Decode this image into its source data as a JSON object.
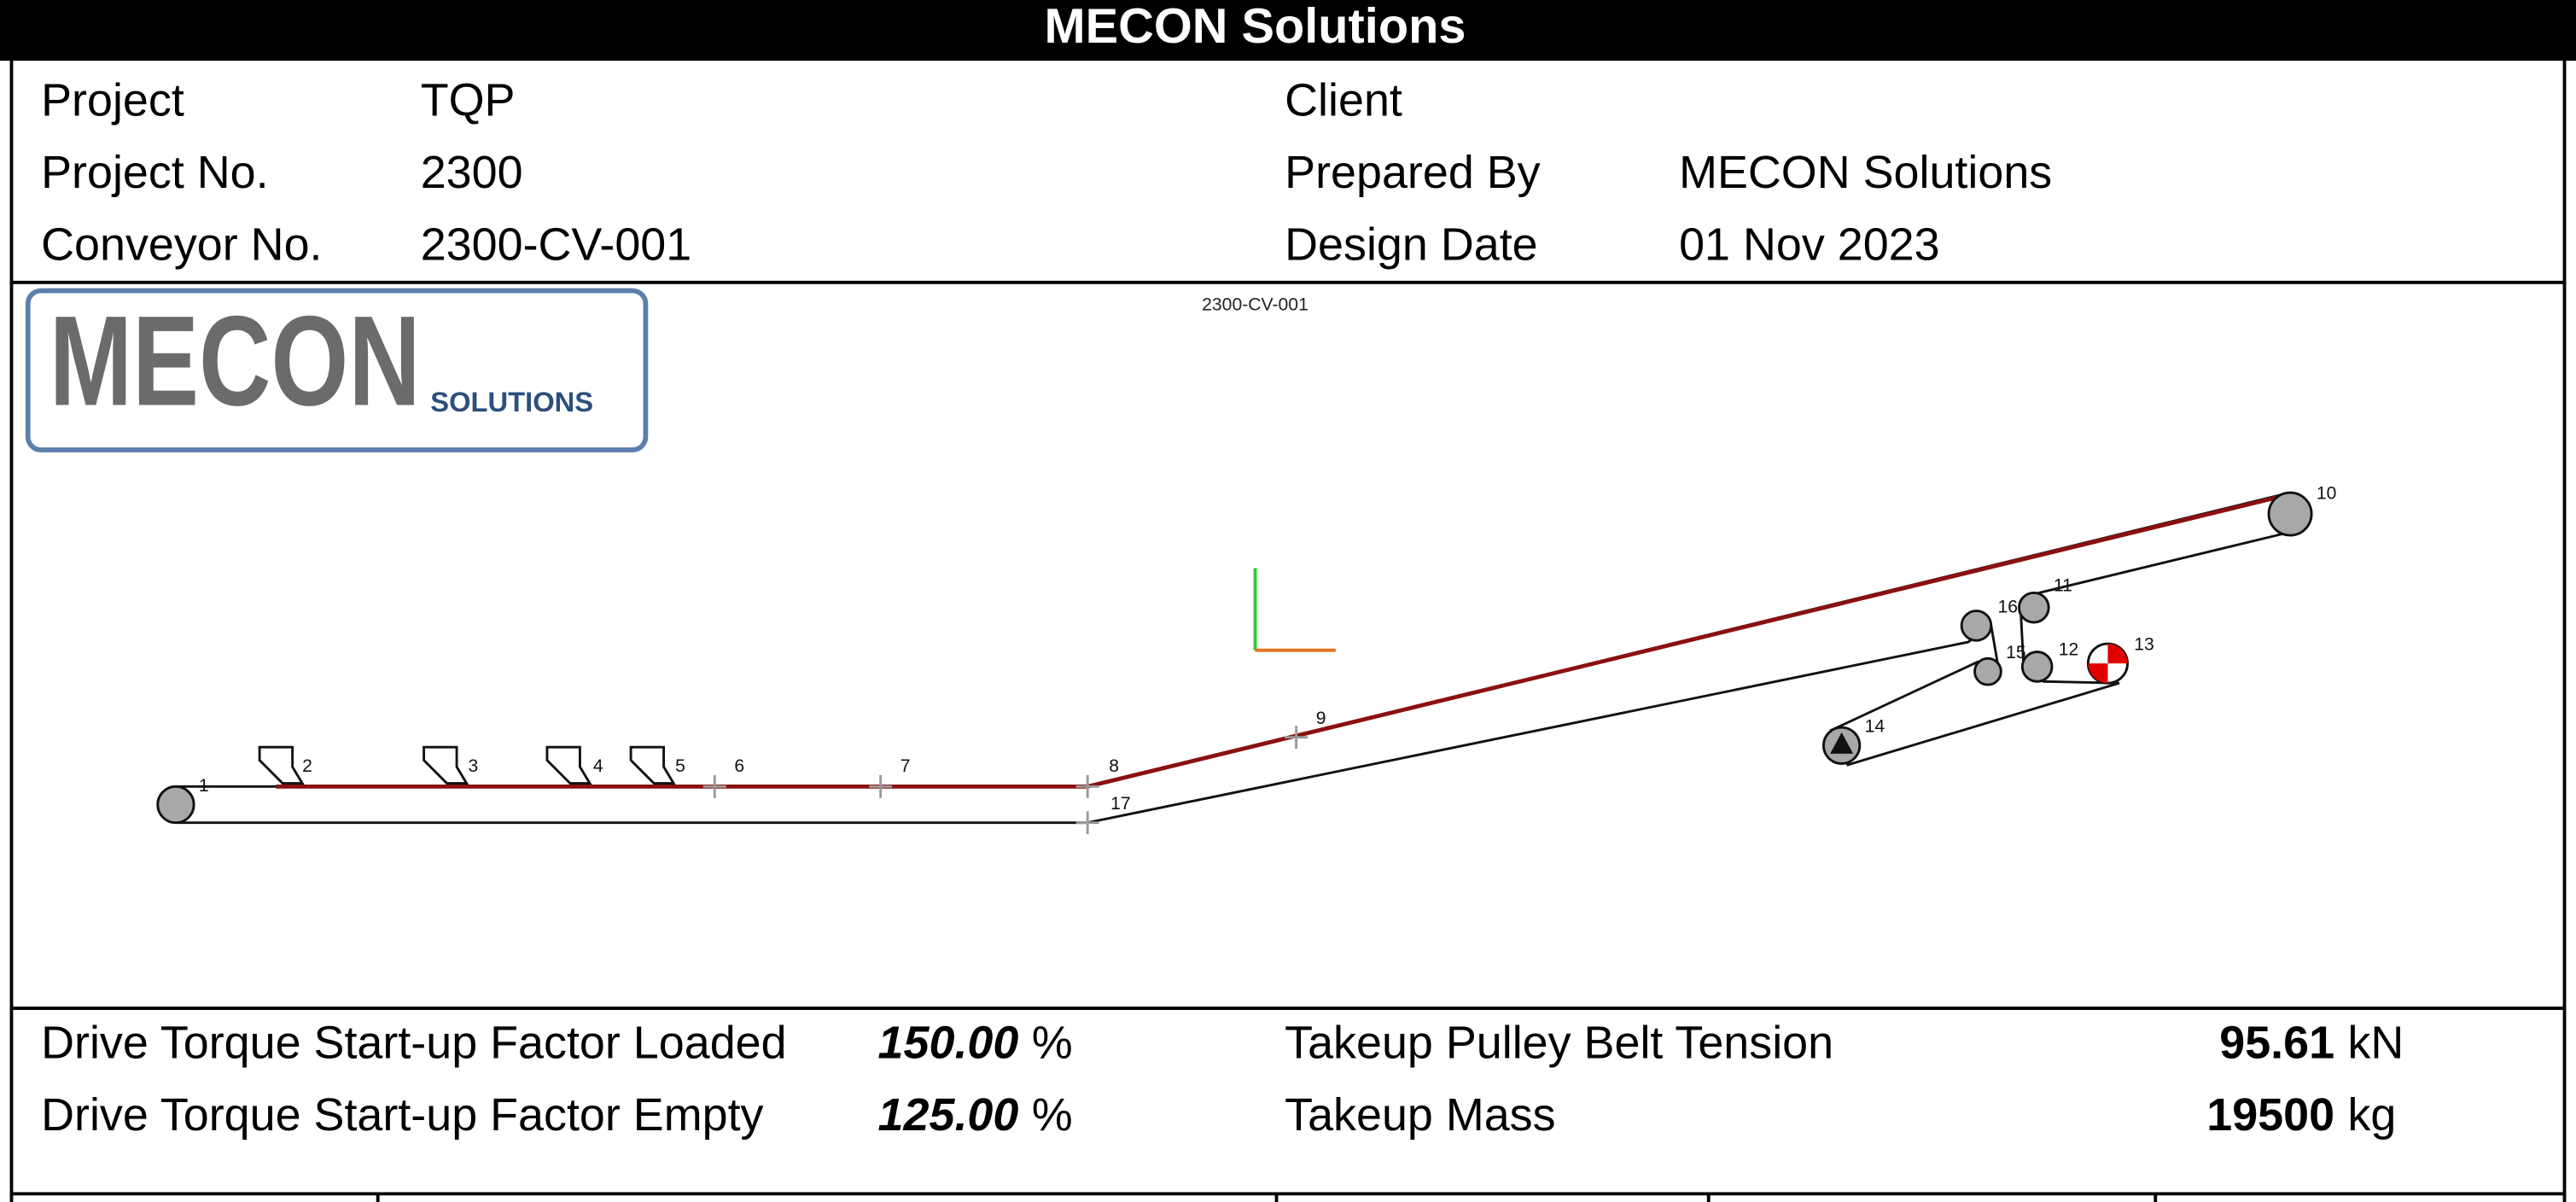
{
  "header": {
    "title": "MECON Solutions"
  },
  "info": [
    {
      "label": "Project",
      "value": "TQP"
    },
    {
      "label": "Project No.",
      "value": "2300"
    },
    {
      "label": "Conveyor No.",
      "value": "2300-CV-001"
    },
    {
      "label": "Client"
    },
    {
      "label": "Prepared By",
      "value": "MECON Solutions"
    },
    {
      "label": "Design Date",
      "value": "01 Nov 2023"
    }
  ],
  "logo": {
    "name": "MECON",
    "tagline": "SOLUTIONS"
  },
  "diagram": {
    "caption": "2300-CV-001",
    "nodes": [
      1,
      2,
      3,
      4,
      5,
      6,
      7,
      8,
      9,
      10,
      11,
      12,
      13,
      14,
      15,
      16,
      17
    ]
  },
  "parameters": [
    {
      "label": "Drive Torque Start-up Factor Loaded",
      "value": "150.00",
      "unit": "%"
    },
    {
      "label": "Drive Torque Start-up Factor Empty",
      "value": "125.00",
      "unit": "%"
    },
    {
      "label": "Takeup Pulley Belt Tension",
      "value": "95.61",
      "unit": "kN"
    },
    {
      "label": "Takeup Mass",
      "value": "19500",
      "unit": "kg"
    }
  ]
}
